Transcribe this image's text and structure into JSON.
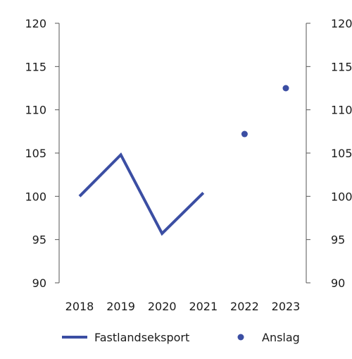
{
  "chart_data": {
    "type": "line",
    "categories": [
      "2018",
      "2019",
      "2020",
      "2021",
      "2022",
      "2023"
    ],
    "ylim": [
      90,
      120
    ],
    "yticks": [
      90,
      95,
      100,
      105,
      110,
      115,
      120
    ],
    "grid": false,
    "legend_position": "bottom",
    "series": [
      {
        "name": "Fastlandseksport",
        "type": "line",
        "values": [
          100,
          104.8,
          95.7,
          100.4,
          null,
          null
        ],
        "color": "#3b4ea3"
      },
      {
        "name": "Anslag",
        "type": "scatter",
        "values": [
          null,
          null,
          null,
          null,
          107.2,
          112.5
        ],
        "color": "#3b4ea3"
      }
    ]
  }
}
